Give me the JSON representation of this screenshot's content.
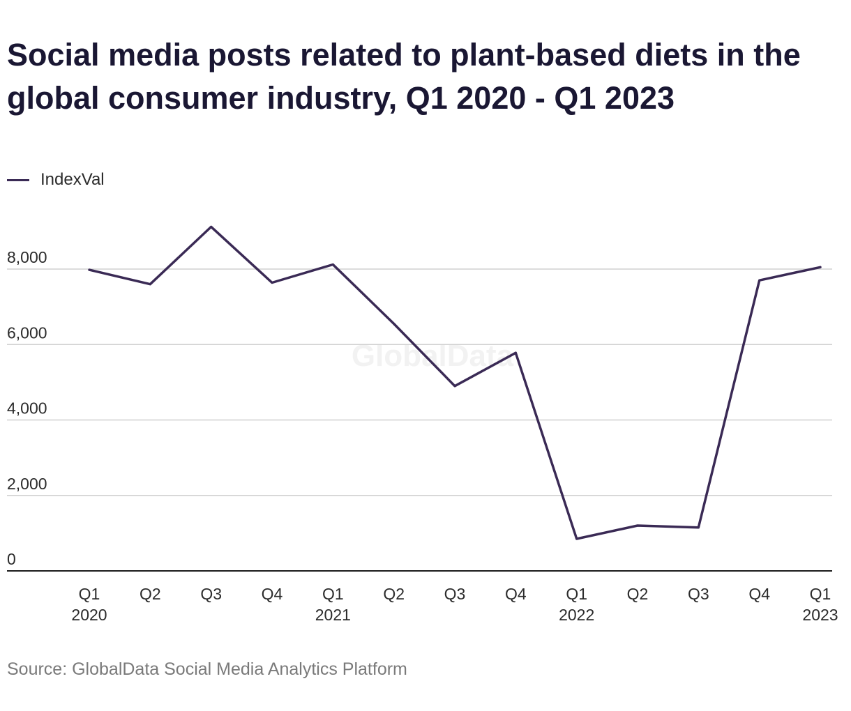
{
  "title": "Social media posts related to plant-based diets in the global consumer industry, Q1 2020 - Q1 2023",
  "legend": {
    "label": "IndexVal"
  },
  "source": "Source: GlobalData Social Media Analytics Platform",
  "watermark": "GlobalData",
  "colors": {
    "line": "#3a2a55",
    "grid": "#d0d0d0",
    "axis": "#1a1a1a",
    "tick_text": "#2b2b2b",
    "watermark": "#f2f2f2"
  },
  "chart_data": {
    "type": "line",
    "title": "Social media posts related to plant-based diets in the global consumer industry, Q1 2020 - Q1 2023",
    "categories": [
      [
        "Q1",
        "2020"
      ],
      [
        "Q2",
        ""
      ],
      [
        "Q3",
        ""
      ],
      [
        "Q4",
        ""
      ],
      [
        "Q1",
        "2021"
      ],
      [
        "Q2",
        ""
      ],
      [
        "Q3",
        ""
      ],
      [
        "Q4",
        ""
      ],
      [
        "Q1",
        "2022"
      ],
      [
        "Q2",
        ""
      ],
      [
        "Q3",
        ""
      ],
      [
        "Q4",
        ""
      ],
      [
        "Q1",
        "2023"
      ]
    ],
    "series": [
      {
        "name": "IndexVal",
        "values": [
          7980,
          7600,
          9120,
          7640,
          8120,
          6550,
          4900,
          5780,
          850,
          1200,
          1150,
          7700,
          8050
        ]
      }
    ],
    "yticks": [
      0,
      2000,
      4000,
      6000,
      8000
    ],
    "ytick_labels": [
      "0",
      "2,000",
      "4,000",
      "6,000",
      "8,000"
    ],
    "ylim": [
      0,
      9500
    ],
    "grid": true,
    "legend_position": "top-left",
    "xlabel": "",
    "ylabel": ""
  }
}
